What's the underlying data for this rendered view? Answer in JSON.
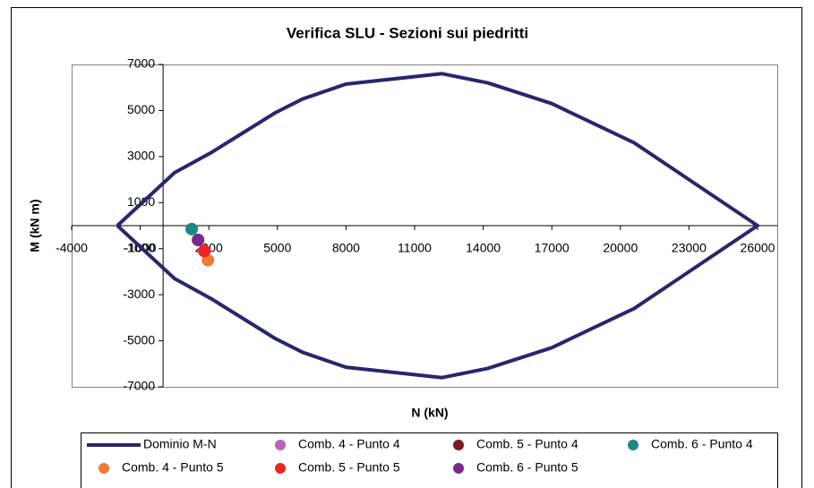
{
  "chart_data": {
    "type": "scatter",
    "title": "Verifica SLU - Sezioni sui piedritti",
    "x_label": "N (kN)",
    "y_label": "M (kN m)",
    "xlim": [
      -4000,
      26000
    ],
    "ylim": [
      -7000,
      7000
    ],
    "xticks": [
      -4000,
      -1000,
      2000,
      5000,
      8000,
      11000,
      14000,
      17000,
      20000,
      23000,
      26000
    ],
    "yticks": [
      -7000,
      -5000,
      -3000,
      -1000,
      1000,
      3000,
      5000,
      7000
    ],
    "series": [
      {
        "name": "Dominio M-N",
        "color": "#27276f",
        "mode": "line",
        "x": [
          -2000,
          500,
          2150,
          4900,
          6100,
          8000,
          12200,
          14200,
          17000,
          20600,
          26000,
          20600,
          17000,
          14200,
          12200,
          8000,
          6100,
          4900,
          2150,
          500,
          -2000
        ],
        "values": [
          0,
          2300,
          3200,
          4900,
          5500,
          6150,
          6600,
          6200,
          5300,
          3600,
          0,
          -3600,
          -5300,
          -6200,
          -6600,
          -6150,
          -5500,
          -4900,
          -3200,
          -2300,
          0
        ]
      },
      {
        "name": "Comb. 4 - Punto 4",
        "color": "#c062bd",
        "mode": "marker",
        "x": [
          1800
        ],
        "values": [
          -1100
        ]
      },
      {
        "name": "Comb. 5 - Punto 4",
        "color": "#7b1c1c",
        "mode": "marker",
        "x": [
          1530
        ],
        "values": [
          -620
        ]
      },
      {
        "name": "Comb. 6 - Punto 4",
        "color": "#1b8a80",
        "mode": "marker",
        "x": [
          1250
        ],
        "values": [
          -150
        ]
      },
      {
        "name": "Comb. 4 - Punto 5",
        "color": "#f07a30",
        "mode": "marker",
        "x": [
          1960
        ],
        "values": [
          -1500
        ]
      },
      {
        "name": "Comb. 5 - Punto 5",
        "color": "#ee2424",
        "mode": "marker",
        "x": [
          1800
        ],
        "values": [
          -1100
        ]
      },
      {
        "name": "Comb. 6 - Punto 5",
        "color": "#7a2a8a",
        "mode": "marker",
        "x": [
          1530
        ],
        "values": [
          -620
        ]
      }
    ]
  }
}
